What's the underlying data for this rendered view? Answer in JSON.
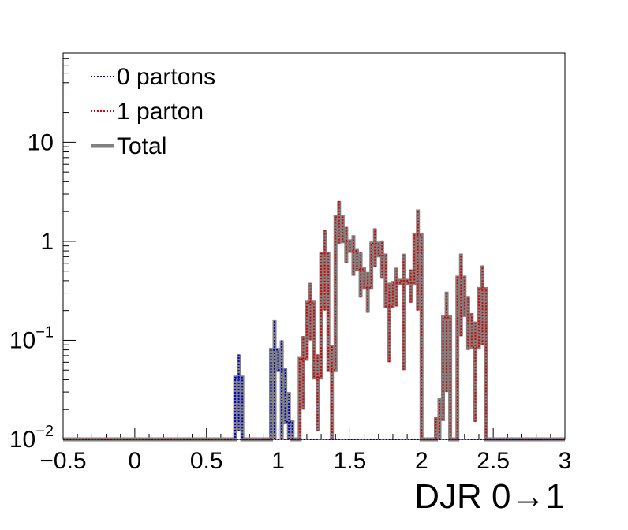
{
  "chart_data": {
    "type": "line",
    "xlabel": "DJR 0→1",
    "ylabel": "",
    "xlim": [
      -0.5,
      3.0
    ],
    "ylim": [
      0.01,
      80
    ],
    "yscale": "log",
    "grid": false,
    "legend_placement": "top-left",
    "x_ticks": [
      {
        "v": -0.5,
        "label": "−0.5"
      },
      {
        "v": 0,
        "label": "0"
      },
      {
        "v": 0.5,
        "label": "0.5"
      },
      {
        "v": 1,
        "label": "1"
      },
      {
        "v": 1.5,
        "label": "1.5"
      },
      {
        "v": 2,
        "label": "2"
      },
      {
        "v": 2.5,
        "label": "2.5"
      },
      {
        "v": 3,
        "label": "3"
      }
    ],
    "y_ticks": [
      {
        "v": 0.01,
        "base": "10",
        "exp": "−2",
        "label": ""
      },
      {
        "v": 0.1,
        "base": "10",
        "exp": "−1",
        "label": ""
      },
      {
        "v": 1,
        "base": "",
        "exp": "",
        "label": "1"
      },
      {
        "v": 10,
        "base": "",
        "exp": "",
        "label": "10"
      }
    ],
    "bin_width": 0.05,
    "series": [
      {
        "name": "0 partons",
        "color": "#0000cc",
        "style": "dotted",
        "bins": [
          {
            "x": 0.7,
            "y": 0.042,
            "err": 0.03
          },
          {
            "x": 0.95,
            "y": 0.08,
            "err": 0.08
          },
          {
            "x": 1.0,
            "y": 0.05,
            "err": 0.05
          },
          {
            "x": 1.05,
            "y": 0.015,
            "err": 0.015
          }
        ]
      },
      {
        "name": "1 parton",
        "color": "#dd0000",
        "style": "dotted",
        "bins": [
          {
            "x": 1.15,
            "y": 0.065,
            "err": 0.045
          },
          {
            "x": 1.2,
            "y": 0.24,
            "err": 0.14
          },
          {
            "x": 1.25,
            "y": 0.042,
            "err": 0.03
          },
          {
            "x": 1.3,
            "y": 0.75,
            "err": 0.55
          },
          {
            "x": 1.35,
            "y": 0.05,
            "err": 0.04
          },
          {
            "x": 1.4,
            "y": 1.75,
            "err": 0.8
          },
          {
            "x": 1.45,
            "y": 1.0,
            "err": 0.4
          },
          {
            "x": 1.5,
            "y": 0.8,
            "err": 0.35
          },
          {
            "x": 1.55,
            "y": 0.52,
            "err": 0.25
          },
          {
            "x": 1.6,
            "y": 0.34,
            "err": 0.15
          },
          {
            "x": 1.65,
            "y": 0.95,
            "err": 0.4
          },
          {
            "x": 1.7,
            "y": 0.72,
            "err": 0.3
          },
          {
            "x": 1.75,
            "y": 0.22,
            "err": 0.16
          },
          {
            "x": 1.8,
            "y": 0.38,
            "err": 0.16
          },
          {
            "x": 1.85,
            "y": 0.4,
            "err": 0.35
          },
          {
            "x": 1.9,
            "y": 0.38,
            "err": 0.14
          },
          {
            "x": 1.95,
            "y": 1.15,
            "err": 0.95
          },
          {
            "x": 2.1,
            "y": 0.016,
            "err": 0.01
          },
          {
            "x": 2.15,
            "y": 0.17,
            "err": 0.14
          },
          {
            "x": 2.25,
            "y": 0.43,
            "err": 0.32
          },
          {
            "x": 2.3,
            "y": 0.18,
            "err": 0.1
          },
          {
            "x": 2.35,
            "y": 0.085,
            "err": 0.07
          },
          {
            "x": 2.4,
            "y": 0.33,
            "err": 0.24
          }
        ]
      },
      {
        "name": "Total",
        "color": "#808080",
        "style": "solid",
        "bins": []
      }
    ]
  }
}
